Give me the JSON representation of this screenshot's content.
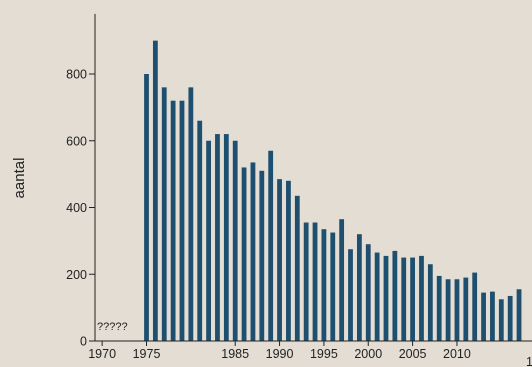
{
  "chart_data": {
    "type": "bar",
    "title": "",
    "xlabel": "",
    "ylabel": "aantal",
    "ylim": [
      0,
      980
    ],
    "yticks": [
      0,
      200,
      400,
      600,
      800
    ],
    "xticks": [
      1970,
      1975,
      1985,
      1990,
      1995,
      2000,
      2005,
      2010
    ],
    "xticklabels": [
      "1970",
      "1975",
      "1985",
      "1990",
      "1995",
      "2000",
      "2005",
      "2010"
    ],
    "truncated_tick_label": "1",
    "annotation": "?????",
    "bar_color": "#1f4f6f",
    "background_color": "#e4ddd4",
    "grid": false,
    "legend": "none",
    "x": [
      1975,
      1976,
      1977,
      1978,
      1979,
      1980,
      1981,
      1982,
      1983,
      1984,
      1985,
      1986,
      1987,
      1988,
      1989,
      1990,
      1991,
      1992,
      1993,
      1994,
      1995,
      1996,
      1997,
      1998,
      1999,
      2000,
      2001,
      2002,
      2003,
      2004,
      2005,
      2006,
      2007,
      2008,
      2009,
      2010,
      2011,
      2012,
      2013,
      2014,
      2015,
      2016,
      2017
    ],
    "values": [
      800,
      900,
      760,
      720,
      720,
      760,
      660,
      600,
      620,
      620,
      600,
      520,
      535,
      510,
      570,
      485,
      480,
      435,
      355,
      355,
      335,
      325,
      365,
      275,
      320,
      290,
      265,
      255,
      270,
      250,
      250,
      255,
      230,
      195,
      185,
      185,
      190,
      205,
      145,
      148,
      125,
      135,
      155
    ]
  }
}
